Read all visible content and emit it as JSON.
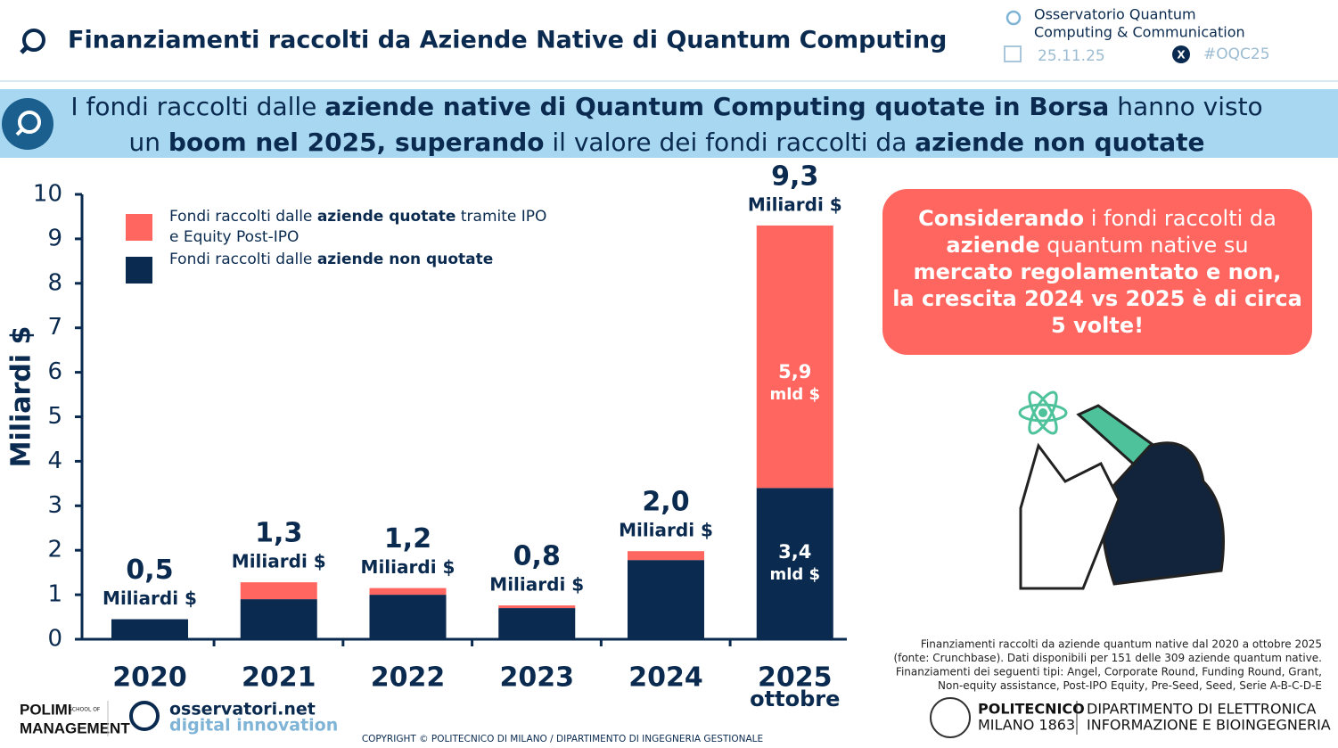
{
  "header": {
    "title": "Finanziamenti raccolti da Aziende Native di Quantum Computing",
    "org": [
      "Osservatorio Quantum",
      "Computing & Communication"
    ],
    "date": "25.11.25",
    "hashtag": "#OQC25"
  },
  "banner": {
    "lines": [
      [
        {
          "text": "I fondi raccolti dalle ",
          "bold": false
        },
        {
          "text": "aziende native di Quantum Computing quotate in Borsa",
          "bold": true
        },
        {
          "text": " hanno visto",
          "bold": false
        }
      ],
      [
        {
          "text": "un ",
          "bold": false
        },
        {
          "text": "boom nel 2025, superando",
          "bold": true
        },
        {
          "text": " il valore dei fondi raccolti da ",
          "bold": false
        },
        {
          "text": "aziende non quotate",
          "bold": true
        }
      ]
    ]
  },
  "chart_data": {
    "type": "stacked-bar",
    "y_label": "Miliardi $",
    "categories": [
      "2020",
      "2021",
      "2022",
      "2023",
      "2024",
      "2025"
    ],
    "category_notes": [
      null,
      null,
      null,
      null,
      null,
      "ottobre"
    ],
    "series": [
      {
        "name": "Fondi raccolti dalle aziende non quotate",
        "name_bold": "aziende non quotate",
        "color": "#0a2a4f",
        "values": [
          0.45,
          0.9,
          1.0,
          0.7,
          1.78,
          3.4
        ],
        "value_labels": [
          null,
          null,
          null,
          null,
          null,
          "3,4"
        ]
      },
      {
        "name": "Fondi raccolti dalle aziende quotate tramite IPO e Equity Post-IPO",
        "name_bold": "aziende quotate",
        "color": "#ff6660",
        "values": [
          0,
          0.38,
          0.15,
          0.06,
          0.2,
          5.9
        ],
        "value_labels": [
          null,
          null,
          null,
          null,
          null,
          "5,9"
        ]
      }
    ],
    "totals": [
      0.5,
      1.3,
      1.2,
      0.8,
      2.0,
      9.3
    ],
    "total_labels": [
      "0,5",
      "1,3",
      "1,2",
      "0,8",
      "2,0",
      "9,3"
    ],
    "total_unit": "Miliardi $",
    "segment_unit": "mld $",
    "ylim": [
      0,
      10
    ],
    "yticks": [
      0,
      1,
      2,
      3,
      4,
      5,
      6,
      7,
      8,
      9,
      10
    ]
  },
  "callout": [
    [
      {
        "text": "Considerando",
        "bold": true
      },
      {
        "text": " i fondi raccolti da",
        "bold": false
      }
    ],
    [
      {
        "text": "aziende",
        "bold": true
      },
      {
        "text": " quantum native su",
        "bold": false
      }
    ],
    [
      {
        "text": "mercato regolamentato e non,",
        "bold": true
      }
    ],
    [
      {
        "text": "la crescita 2024 vs 2025 è di circa",
        "bold": true
      }
    ],
    [
      {
        "text": "5 volte!",
        "bold": true
      }
    ]
  ],
  "note": [
    "Finanziamenti raccolti da aziende quantum native dal 2020 a ottobre 2025",
    "(fonte: Crunchbase). Dati disponibili per 151 delle 309 aziende quantum native.",
    "Finanziamenti dei seguenti tipi: Angel, Corporate Round, Funding Round, Grant,",
    "Non-equity assistance, Post-IPO Equity, Pre-Seed, Seed, Serie A-B-C-D-E"
  ],
  "footer": {
    "polimi": [
      "POLIMI",
      "MANAGEMENT"
    ],
    "polimi_small": [
      "SCHOOL OF"
    ],
    "osservatori": [
      "osservatori.net",
      "digital innovation"
    ],
    "copyright": "COPYRIGHT © POLITECNICO DI MILANO / DIPARTIMENTO DI INGEGNERIA GESTIONALE",
    "politecnico": [
      "POLITECNICO",
      "MILANO 1863"
    ],
    "dept": [
      "DIPARTIMENTO DI ELETTRONICA",
      "INFORMAZIONE E BIOINGEGNERIA"
    ]
  }
}
